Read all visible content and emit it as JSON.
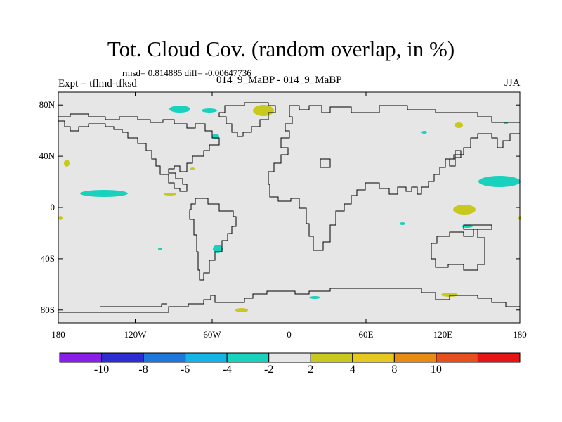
{
  "title": "Tot. Cloud Cov. (random overlap, in %)",
  "stats": "rmsd= 0.814885 diff= -0.00647736",
  "subtitle": "014_9_MaBP - 014_9_MaBP",
  "expt": "Expt = tflmd-tfksd",
  "season": "JJA",
  "map": {
    "background": "#e6e6e6",
    "lon_range": [
      -180,
      180
    ],
    "lat_range": [
      -90,
      90
    ],
    "y_ticks": [
      {
        "lat": 80,
        "label": "80N"
      },
      {
        "lat": 40,
        "label": "40N"
      },
      {
        "lat": 0,
        "label": "0"
      },
      {
        "lat": -40,
        "label": "40S"
      },
      {
        "lat": -80,
        "label": "80S"
      }
    ],
    "x_ticks": [
      {
        "lon": -180,
        "label": "180"
      },
      {
        "lon": -120,
        "label": "120W"
      },
      {
        "lon": -60,
        "label": "60W"
      },
      {
        "lon": 0,
        "label": "0"
      },
      {
        "lon": 60,
        "label": "60E"
      },
      {
        "lon": 120,
        "label": "120E"
      },
      {
        "lon": 180,
        "label": "180"
      }
    ]
  },
  "colorbar": {
    "colors": [
      "#8a1ee6",
      "#2d2dd2",
      "#1e78dc",
      "#14b4e6",
      "#19d2be",
      "#e6e6e6",
      "#c8c81e",
      "#e6c81e",
      "#e68c14",
      "#e6501e",
      "#e61414"
    ],
    "labels": [
      "-10",
      "-8",
      "-6",
      "-4",
      "-2",
      "2",
      "4",
      "8",
      "10"
    ]
  },
  "chart_data": {
    "type": "heatmap",
    "title": "Tot. Cloud Cov. (random overlap, in %)",
    "levels": [
      -10,
      -8,
      -6,
      -4,
      -2,
      2,
      4,
      8,
      10
    ],
    "xlim": [
      -180,
      180
    ],
    "ylim": [
      -90,
      90
    ],
    "anomalies": [
      {
        "lon": -158,
        "lat": 11,
        "value": -3
      },
      {
        "lon": -68,
        "lat": 79,
        "value": -3
      },
      {
        "lon": -58,
        "lat": 78,
        "value": -3
      },
      {
        "lon": -20,
        "lat": 78,
        "value": 3
      },
      {
        "lon": -55,
        "lat": 56,
        "value": -3
      },
      {
        "lon": 165,
        "lat": 20,
        "value": -3
      },
      {
        "lon": 137,
        "lat": -2,
        "value": 3
      },
      {
        "lon": -55,
        "lat": -33,
        "value": -3
      },
      {
        "lon": 135,
        "lat": 62,
        "value": 3
      },
      {
        "lon": -177,
        "lat": 35,
        "value": 3
      },
      {
        "lon": -93,
        "lat": 10,
        "value": 3
      }
    ]
  }
}
